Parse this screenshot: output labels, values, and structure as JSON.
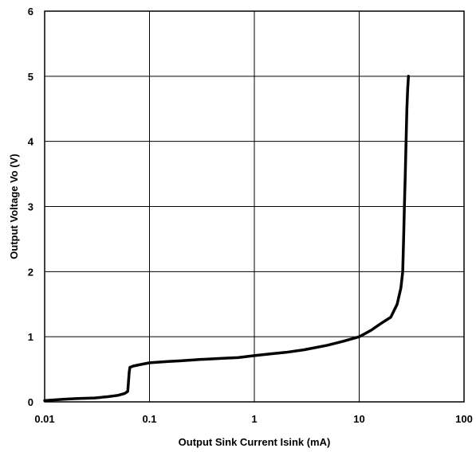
{
  "chart_data": {
    "type": "line",
    "title": "",
    "xlabel": "Output Sink Current  Isink  (mA)",
    "ylabel": "Output Voltage  Vo  (V)",
    "xscale": "log",
    "xlim": [
      0.01,
      100
    ],
    "ylim": [
      0,
      6
    ],
    "grid": true,
    "line_color": "#000000",
    "x_ticks": [
      "0.01",
      "0.1",
      "1",
      "10",
      "100"
    ],
    "y_ticks": [
      "0",
      "1",
      "2",
      "3",
      "4",
      "5",
      "6"
    ],
    "series": [
      {
        "x": [
          0.01,
          0.015,
          0.02,
          0.03,
          0.04,
          0.05,
          0.058,
          0.062,
          0.063,
          0.064,
          0.065,
          0.07,
          0.08,
          0.1,
          0.15,
          0.2,
          0.3,
          0.5,
          0.7,
          1,
          1.5,
          2,
          3,
          5,
          7,
          10,
          13,
          16,
          20,
          23,
          25,
          26,
          26.5,
          27,
          27.5,
          28,
          28.5,
          29,
          29.5
        ],
        "y": [
          0.02,
          0.04,
          0.05,
          0.06,
          0.08,
          0.1,
          0.13,
          0.16,
          0.3,
          0.45,
          0.53,
          0.55,
          0.57,
          0.6,
          0.62,
          0.63,
          0.65,
          0.67,
          0.68,
          0.71,
          0.74,
          0.76,
          0.8,
          0.87,
          0.93,
          1.0,
          1.1,
          1.2,
          1.3,
          1.5,
          1.75,
          2.0,
          2.5,
          3.0,
          3.5,
          4.0,
          4.5,
          4.8,
          5.0
        ]
      }
    ]
  }
}
